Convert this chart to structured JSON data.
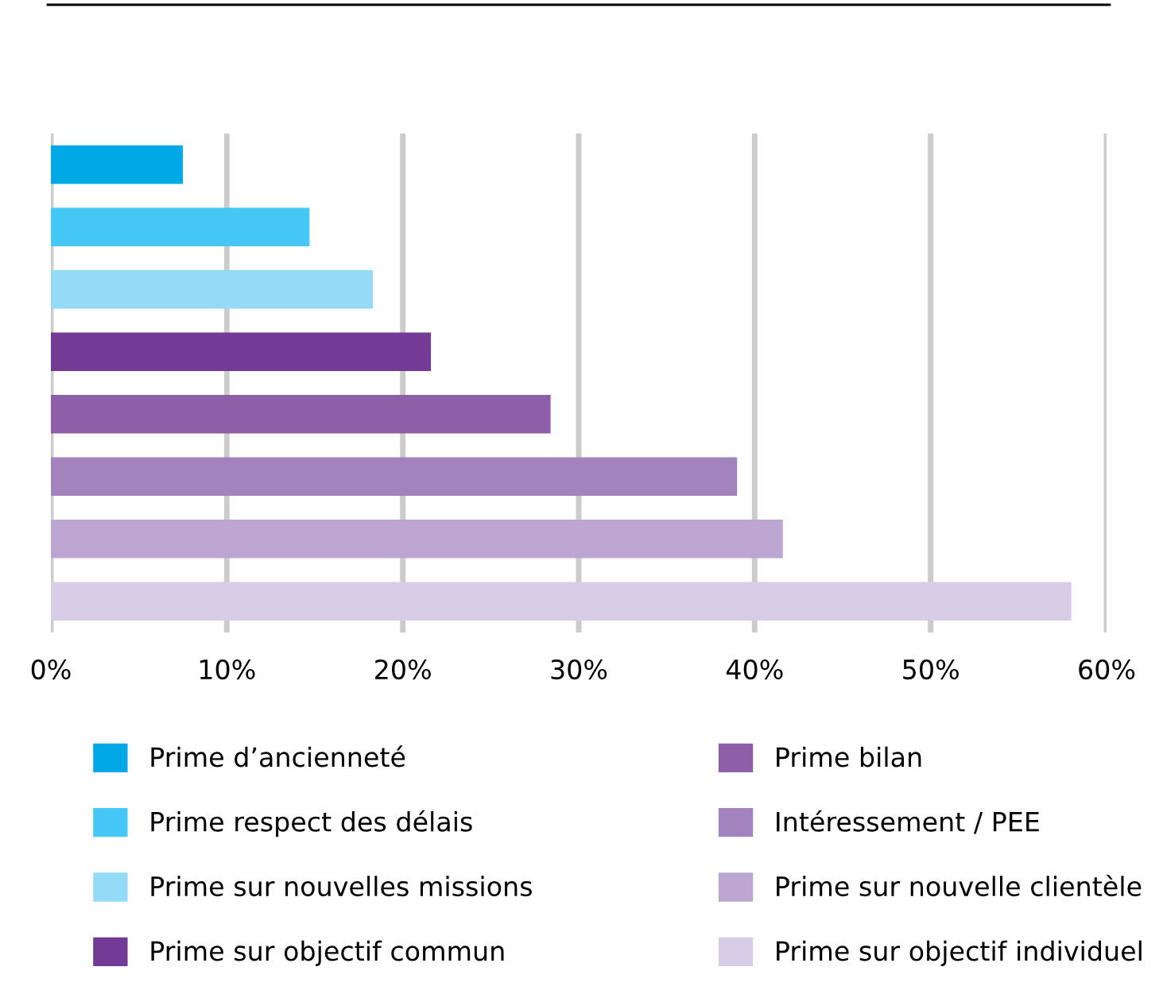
{
  "chart_data": {
    "type": "bar",
    "orientation": "horizontal",
    "categories": [
      null,
      null,
      null,
      null,
      null,
      null,
      null,
      null
    ],
    "series": [
      {
        "name": "Prime d’ancienneté",
        "color": "#00a9e6",
        "values": [
          7.5,
          null,
          null,
          null,
          null,
          null,
          null,
          null
        ]
      },
      {
        "name": "Prime respect des délais",
        "color": "#45c8f5",
        "values": [
          null,
          14.7,
          null,
          null,
          null,
          null,
          null,
          null
        ]
      },
      {
        "name": "Prime sur nouvelles missions",
        "color": "#93dbf7",
        "values": [
          null,
          null,
          18.3,
          null,
          null,
          null,
          null,
          null
        ]
      },
      {
        "name": "Prime sur objectif commun",
        "color": "#733b96",
        "values": [
          null,
          null,
          null,
          21.6,
          null,
          null,
          null,
          null
        ]
      },
      {
        "name": "Prime bilan",
        "color": "#8c5fa8",
        "values": [
          null,
          null,
          null,
          null,
          28.4,
          null,
          null,
          null
        ]
      },
      {
        "name": "Intéressement / PEE",
        "color": "#a283bd",
        "values": [
          null,
          null,
          null,
          null,
          null,
          39.0,
          null,
          null
        ]
      },
      {
        "name": "Prime sur nouvelle clientèle",
        "color": "#bba6d1",
        "values": [
          null,
          null,
          null,
          null,
          null,
          null,
          41.6,
          null
        ]
      },
      {
        "name": "Prime sur objectif individuel",
        "color": "#d8cde6",
        "values": [
          null,
          null,
          null,
          null,
          null,
          null,
          null,
          58.0
        ]
      }
    ],
    "xlim": [
      0,
      60
    ],
    "xticks": [
      {
        "value": 0,
        "label": "0%"
      },
      {
        "value": 10,
        "label": "10%"
      },
      {
        "value": 20,
        "label": "20%"
      },
      {
        "value": 30,
        "label": "30%"
      },
      {
        "value": 40,
        "label": "40%"
      },
      {
        "value": 50,
        "label": "50%"
      },
      {
        "value": 60,
        "label": "60%"
      }
    ],
    "grid": "x",
    "legend": "bottom"
  }
}
